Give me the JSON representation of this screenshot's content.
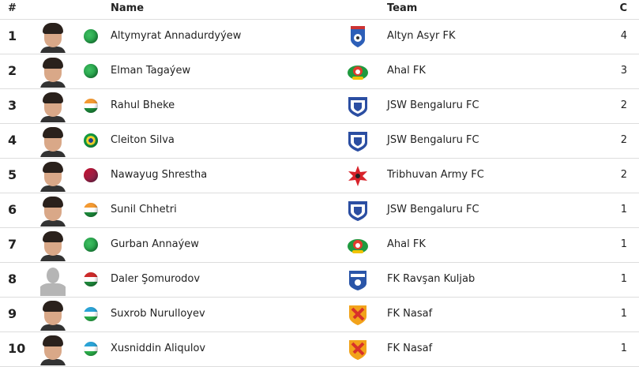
{
  "header": {
    "rank": "#",
    "name": "Name",
    "team": "Team",
    "count": "C"
  },
  "rows": [
    {
      "rank": "1",
      "name": "Altymyrat Annadurdyýew",
      "flag": "turkmenistan",
      "team": "Altyn Asyr FK",
      "logo": "altyn-asyr",
      "count": "4"
    },
    {
      "rank": "2",
      "name": "Elman Tagaýew",
      "flag": "turkmenistan",
      "team": "Ahal FK",
      "logo": "ahal",
      "count": "3"
    },
    {
      "rank": "3",
      "name": "Rahul Bheke",
      "flag": "india",
      "team": "JSW Bengaluru FC",
      "logo": "bengaluru",
      "count": "2"
    },
    {
      "rank": "4",
      "name": "Cleiton Silva",
      "flag": "brazil",
      "team": "JSW Bengaluru FC",
      "logo": "bengaluru",
      "count": "2"
    },
    {
      "rank": "5",
      "name": "Nawayug Shrestha",
      "flag": "nepal",
      "team": "Tribhuvan Army FC",
      "logo": "tribhuvan",
      "count": "2"
    },
    {
      "rank": "6",
      "name": "Sunil Chhetri",
      "flag": "india",
      "team": "JSW Bengaluru FC",
      "logo": "bengaluru",
      "count": "1"
    },
    {
      "rank": "7",
      "name": "Gurban Annaýew",
      "flag": "turkmenistan",
      "team": "Ahal FK",
      "logo": "ahal",
      "count": "1"
    },
    {
      "rank": "8",
      "name": "Daler Şomurodov",
      "flag": "tajikistan",
      "team": "FK Ravşan Kuljab",
      "logo": "ravshan",
      "count": "1",
      "no_photo": true
    },
    {
      "rank": "9",
      "name": "Suxrob Nurulloyev",
      "flag": "uzbekistan",
      "team": "FK Nasaf",
      "logo": "nasaf",
      "count": "1"
    },
    {
      "rank": "10",
      "name": "Xusniddin Aliqulov",
      "flag": "uzbekistan",
      "team": "FK Nasaf",
      "logo": "nasaf",
      "count": "1"
    }
  ]
}
